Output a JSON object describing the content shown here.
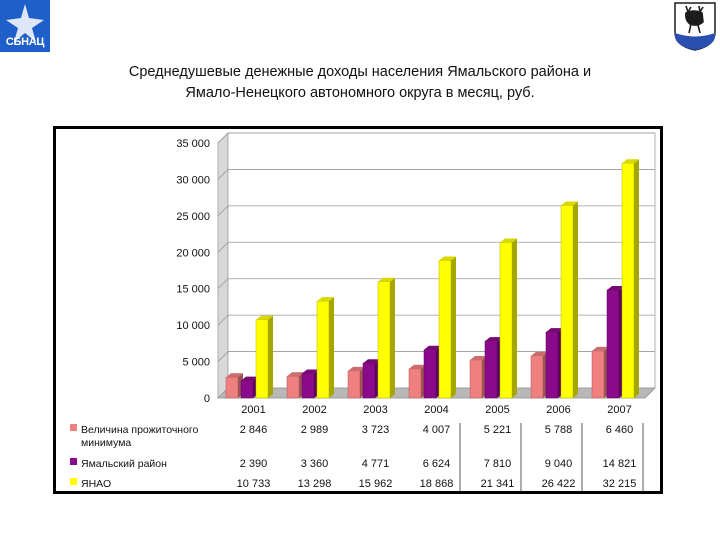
{
  "header": {
    "logo_text": "СБНАЦ",
    "emblem": "yamal-deer-emblem-icon"
  },
  "title_lines": [
    "Среднедушевые денежные доходы населения Ямальского района и",
    "Ямало-Ненецкого автономного округа в месяц, руб."
  ],
  "chart_data": {
    "type": "bar",
    "title": "Среднедушевые денежные доходы населения Ямальского района и Ямало-Ненецкого автономного округа в месяц, руб.",
    "categories": [
      "2001",
      "2002",
      "2003",
      "2004",
      "2005",
      "2006",
      "2007"
    ],
    "ylim": [
      0,
      35000
    ],
    "yticks": [
      0,
      5000,
      10000,
      15000,
      20000,
      25000,
      30000,
      35000
    ],
    "ytick_labels": [
      "0",
      "5 000",
      "10 000",
      "15 000",
      "20 000",
      "25 000",
      "30 000",
      "35 000"
    ],
    "grid": true,
    "legend": "bottom-left data table",
    "series": [
      {
        "name": "Величина прожиточного минимума",
        "name_lines": [
          "Величина прожиточного",
          "минимума"
        ],
        "color": "#f08080",
        "values": [
          2846,
          2989,
          3723,
          4007,
          5221,
          5788,
          6460
        ],
        "labels": [
          "2 846",
          "2 989",
          "3 723",
          "4 007",
          "5 221",
          "5 788",
          "6 460"
        ]
      },
      {
        "name": "Ямальский район",
        "name_lines": [
          "Ямальский район"
        ],
        "color": "#8b0a8b",
        "values": [
          2390,
          3360,
          4771,
          6624,
          7810,
          9040,
          14821
        ],
        "labels": [
          "2 390",
          "3 360",
          "4 771",
          "6 624",
          "7 810",
          "9 040",
          "14 821"
        ]
      },
      {
        "name": "ЯНАО",
        "name_lines": [
          "ЯНАО"
        ],
        "color": "#ffff00",
        "values": [
          10733,
          13298,
          15962,
          18868,
          21341,
          26422,
          32215
        ],
        "labels": [
          "10 733",
          "13 298",
          "15 962",
          "18 868",
          "21 341",
          "26 422",
          "32 215"
        ]
      }
    ]
  }
}
